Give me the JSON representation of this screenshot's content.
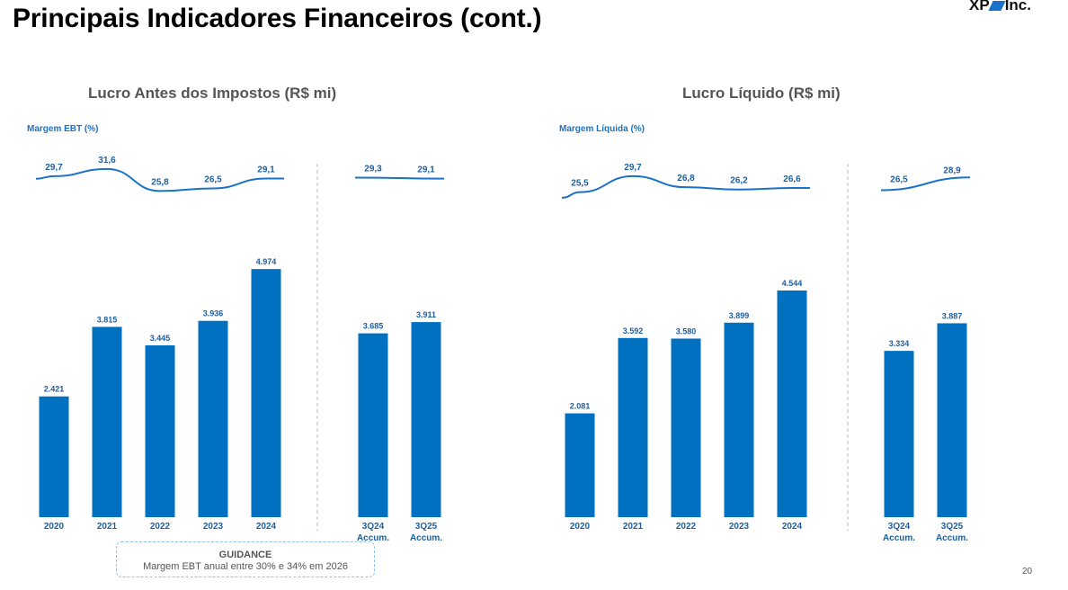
{
  "header": {
    "title": "Principais Indicadores Financeiros (cont.)",
    "logo_left": "XP",
    "logo_right": "Inc."
  },
  "colors": {
    "bar": "#0070C0",
    "line": "#1a72c9",
    "divider": "#bbbbbb",
    "label": "#1f5fa0"
  },
  "chart_data": [
    {
      "type": "bar",
      "title": "Lucro Antes dos Impostos (R$ mi)",
      "margin_title": "Margem EBT (%)",
      "categories": [
        "2020",
        "2021",
        "2022",
        "2023",
        "2024",
        "3Q24 Accum.",
        "3Q25 Accum."
      ],
      "values": [
        2421,
        3815,
        3445,
        3936,
        4974,
        3685,
        3911
      ],
      "value_labels": [
        "2.421",
        "3.815",
        "3.445",
        "3.936",
        "4.974",
        "3.685",
        "3.911"
      ],
      "margin_values": [
        29.7,
        31.6,
        25.8,
        26.5,
        29.1,
        29.3,
        29.1
      ],
      "margin_labels": [
        "29,7",
        "31,6",
        "25,8",
        "26,5",
        "29,1",
        "29,3",
        "29,1"
      ],
      "ylim": [
        0,
        5500
      ]
    },
    {
      "type": "bar",
      "title": "Lucro Líquido (R$ mi)",
      "margin_title": "Margem Líquida (%)",
      "categories": [
        "2020",
        "2021",
        "2022",
        "2023",
        "2024",
        "3Q24 Accum.",
        "3Q25 Accum."
      ],
      "values": [
        2081,
        3592,
        3580,
        3899,
        4544,
        3334,
        3887
      ],
      "value_labels": [
        "2.081",
        "3.592",
        "3.580",
        "3.899",
        "4.544",
        "3.334",
        "3.887"
      ],
      "margin_values": [
        25.5,
        29.7,
        26.8,
        26.2,
        26.6,
        26.5,
        28.9
      ],
      "margin_labels": [
        "25,5",
        "29,7",
        "26,8",
        "26,2",
        "26,6",
        "26,5",
        "28,9"
      ],
      "ylim": [
        0,
        5500
      ]
    }
  ],
  "guidance": {
    "heading": "GUIDANCE",
    "text": "Margem EBT anual entre 30% e 34% em 2026"
  },
  "page_number": "20"
}
